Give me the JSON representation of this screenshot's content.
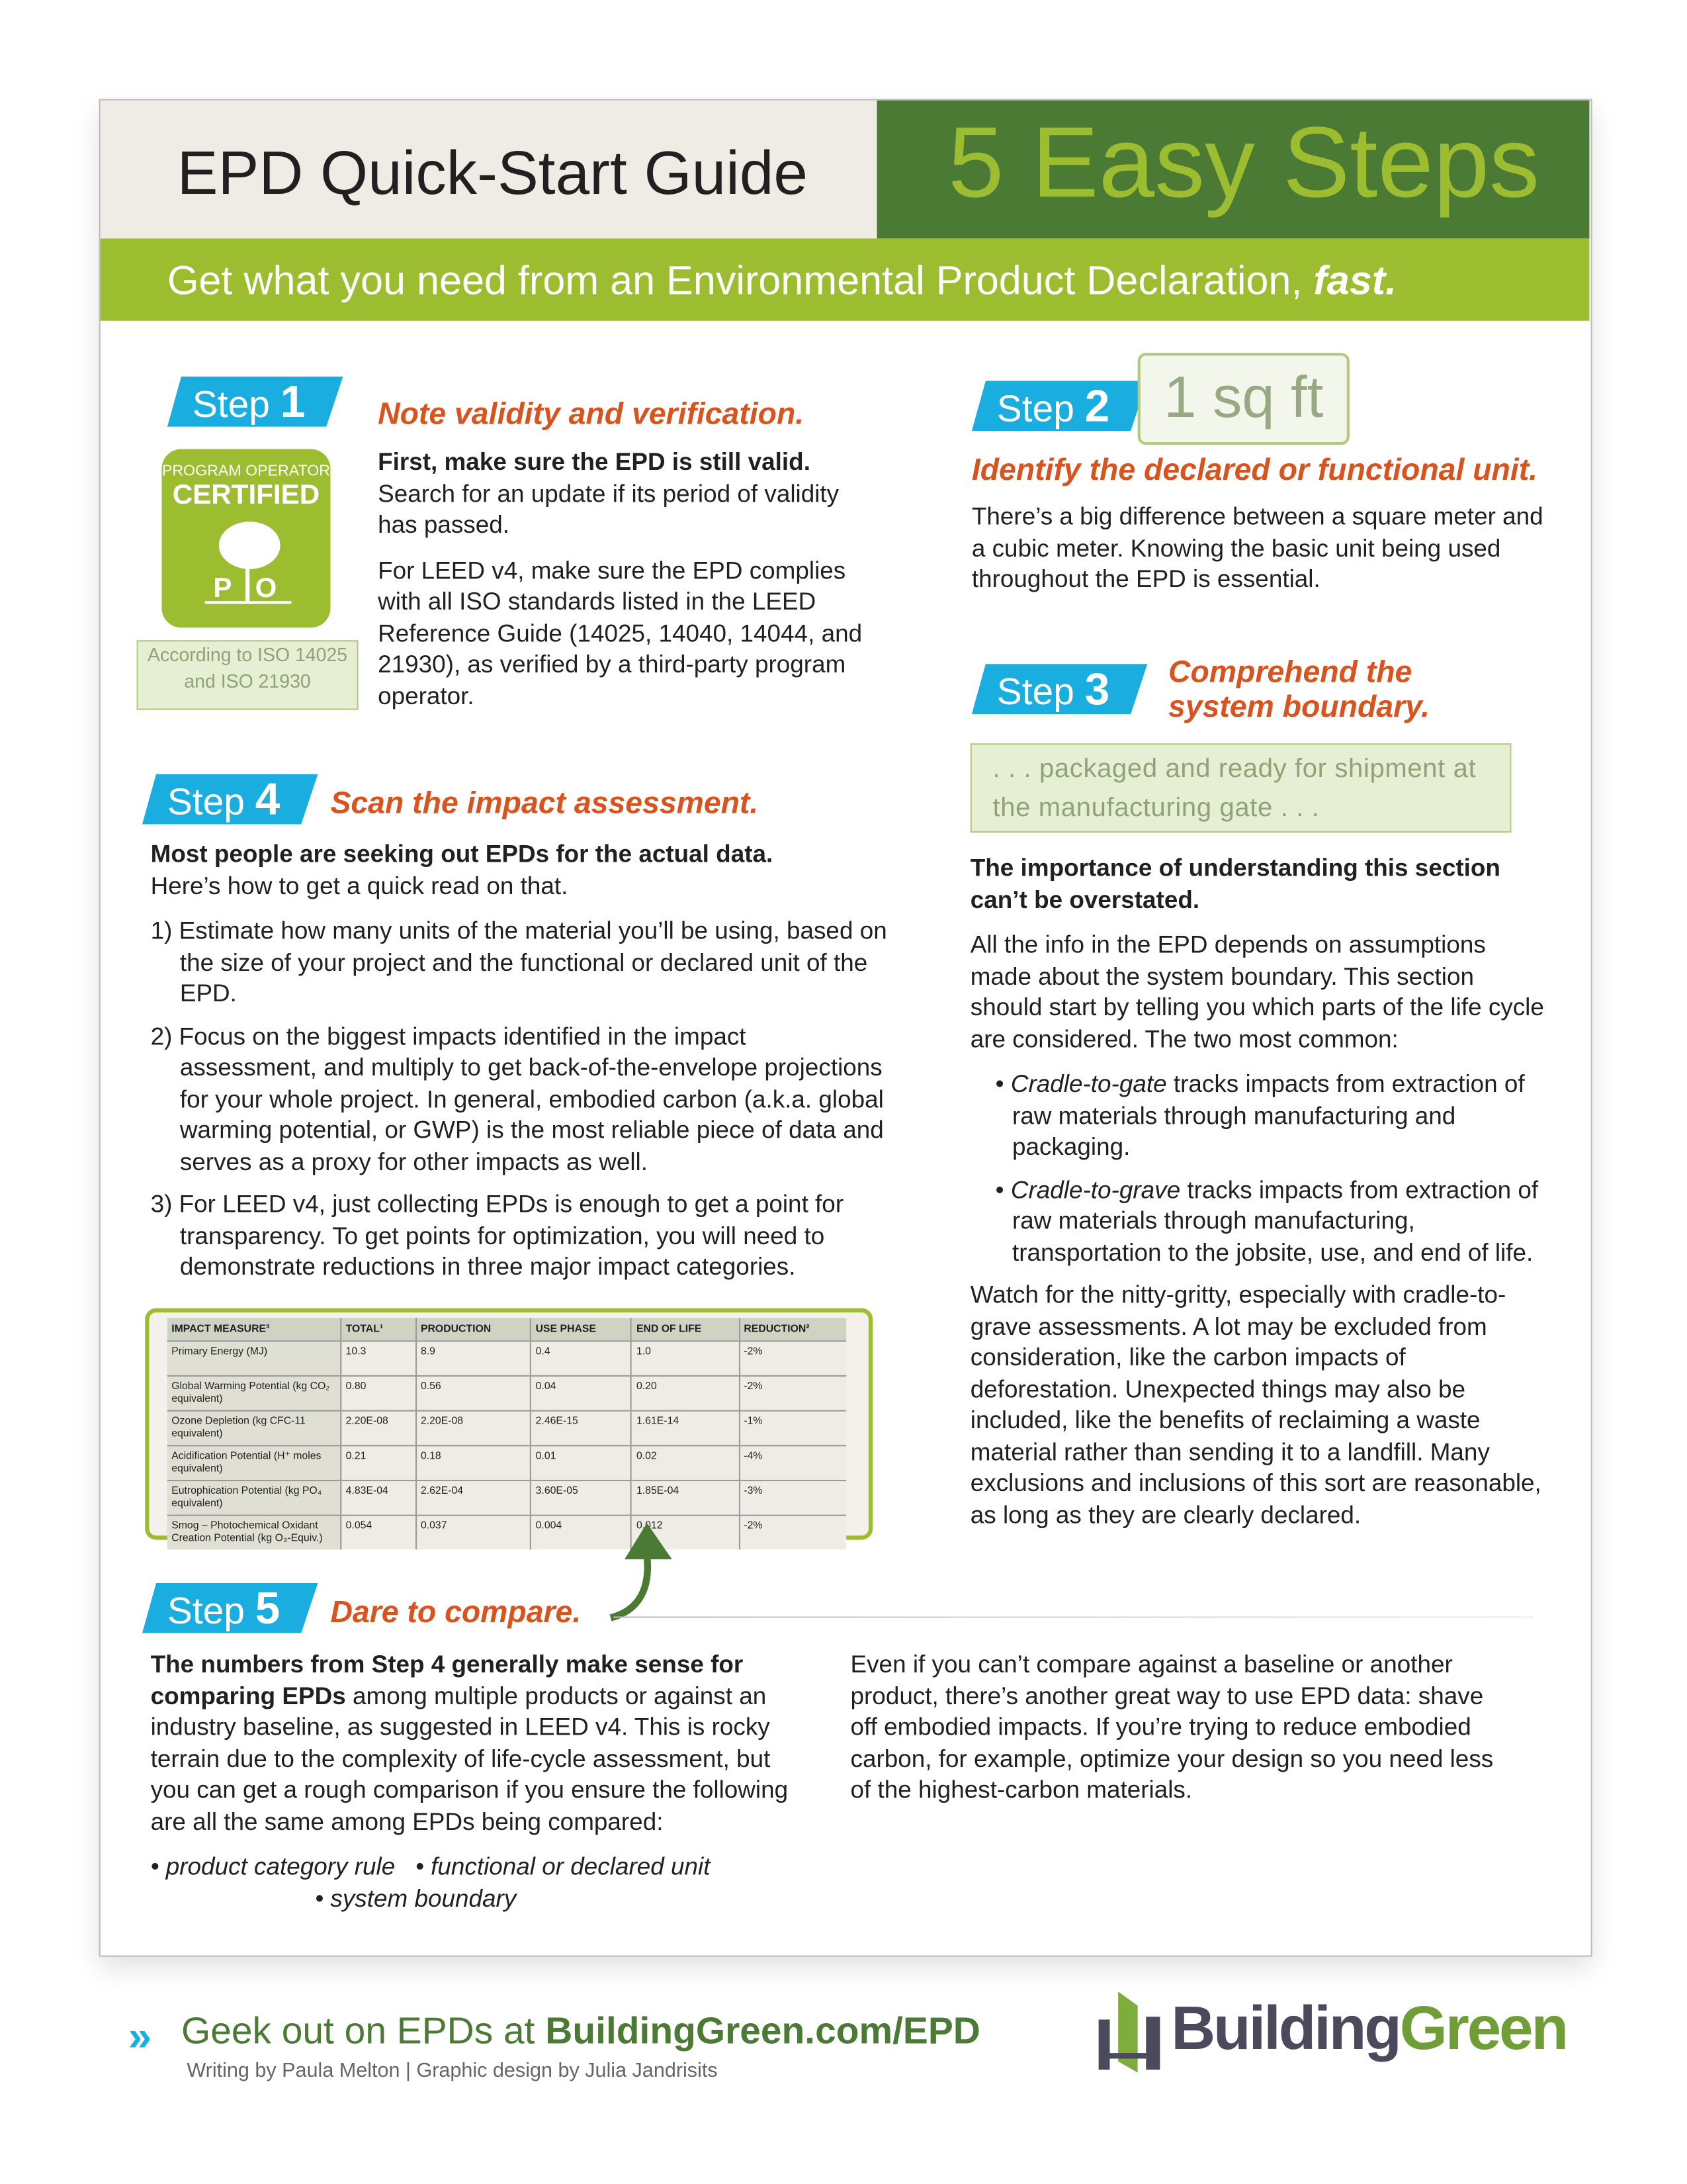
{
  "header": {
    "title": "EPD Quick-Start Guide",
    "steps_title": "5 Easy Steps",
    "tagline": "Get what you need from an Environmental Product Declaration,",
    "tagline_emph": "fast."
  },
  "colors": {
    "accent_green": "#9dbd31",
    "dark_green": "#4b7a35",
    "step_blue": "#1aaee0",
    "heading_orange": "#d9531e",
    "cream": "#efebe5"
  },
  "step_label": "Step",
  "step1": {
    "num": "1",
    "heading": "Note validity and verification.",
    "p1_bold": "First, make sure the EPD is still valid.",
    "p1": "Search for an update if its period of validity has passed.",
    "p2": "For LEED v4, make sure the EPD complies with all ISO standards listed in the LEED Reference Guide (14025, 14040, 14044, and 21930), as verified by a third-party program operator.",
    "badge": {
      "line1": "PROGRAM OPERATOR",
      "line2": "CERTIFIED",
      "letters": "P O"
    },
    "iso_note": "According to ISO 14025 and ISO 21930"
  },
  "step2": {
    "num": "2",
    "callout": "1 sq ft",
    "heading": "Identify the declared or functional unit.",
    "p1": "There’s a big difference between a square meter and a cubic meter. Knowing the basic unit being used throughout the EPD is essential."
  },
  "step3": {
    "num": "3",
    "heading_l1": "Comprehend the",
    "heading_l2": "system boundary.",
    "quote": ". . . packaged and ready for shipment at the manufacturing gate . . .",
    "p1_bold": "The importance of understanding this section can’t be overstated.",
    "p2": "All the info in the EPD depends on assumptions made about the system boundary. This section should start by telling you which parts of the life cycle are considered. The two most common:",
    "bullets": [
      {
        "term": "Cradle-to-gate",
        "text": " tracks impacts from extraction of raw materials through manufacturing and packaging."
      },
      {
        "term": "Cradle-to-grave",
        "text": " tracks impacts from extraction of raw materials through manufacturing, transportation to the jobsite, use, and end of life."
      }
    ],
    "p3": "Watch for the nitty-gritty, especially with cradle-to-grave assessments. A lot may be excluded from consideration, like the carbon impacts of deforestation. Unexpected things may also be included, like the benefits of reclaiming a waste material rather than sending it to a landfill. Many exclusions and inclusions of this sort are reasonable, as long as they are clearly declared."
  },
  "step4": {
    "num": "4",
    "heading": "Scan the impact assessment.",
    "p1_bold": "Most people are seeking out EPDs for the actual data.",
    "p1": "Here’s how to get a quick read on that.",
    "items": [
      "1) Estimate how many units of the material you’ll be using, based on the size of your project and the functional or declared unit of the EPD.",
      "2) Focus on the biggest impacts identified in the impact assessment, and multiply to get back-of-the-envelope projections for your whole project. In general, embodied carbon (a.k.a. global warming potential, or GWP) is the most reliable piece of data and serves as a proxy for other impacts as well.",
      "3) For LEED v4, just collecting EPDs is enough to get a point for transparency. To get points for optimization, you will need to demonstrate reductions in three major impact categories."
    ],
    "table": {
      "headers": [
        "IMPACT MEASURE³",
        "TOTAL¹",
        "PRODUCTION",
        "USE PHASE",
        "END OF LIFE",
        "REDUCTION²"
      ],
      "rows": [
        [
          "Primary Energy (MJ)",
          "10.3",
          "8.9",
          "0.4",
          "1.0",
          "-2%"
        ],
        [
          "Global Warming Potential (kg CO₂ equivalent)",
          "0.80",
          "0.56",
          "0.04",
          "0.20",
          "-2%"
        ],
        [
          "Ozone Depletion (kg CFC-11 equivalent)",
          "2.20E-08",
          "2.20E-08",
          "2.46E-15",
          "1.61E-14",
          "-1%"
        ],
        [
          "Acidification Potential (H⁺ moles equivalent)",
          "0.21",
          "0.18",
          "0.01",
          "0.02",
          "-4%"
        ],
        [
          "Eutrophication Potential (kg PO₄ equivalent)",
          "4.83E-04",
          "2.62E-04",
          "3.60E-05",
          "1.85E-04",
          "-3%"
        ],
        [
          "Smog – Photochemical Oxidant Creation Potential (kg O₃-Equiv.)",
          "0.054",
          "0.037",
          "0.004",
          "0.012",
          "-2%"
        ]
      ]
    }
  },
  "step5": {
    "num": "5",
    "heading": "Dare to compare.",
    "p1_bold": "The numbers from Step 4 generally make sense for comparing EPDs",
    "p1": " among multiple products or against an industry baseline, as suggested in LEED v4. This is rocky terrain due to the complexity of life-cycle assessment, but you can get a rough comparison if you ensure the following are all the same among EPDs being compared:",
    "bullets": [
      "• product category rule",
      "• functional or declared unit",
      "• system boundary"
    ],
    "p2": "Even if you can’t compare against a baseline or another product, there’s another great way to use EPD data: shave off embodied impacts. If you’re trying to reduce embodied carbon, for example, optimize your design so you need less of the highest-carbon materials."
  },
  "footer": {
    "cta": "Geek out on EPDs at ",
    "cta_link": "BuildingGreen.com/EPD",
    "credits": "Writing by Paula Melton  |  Graphic design by Julia Jandrisits",
    "logo_part1": "Building",
    "logo_part2": "Green"
  }
}
